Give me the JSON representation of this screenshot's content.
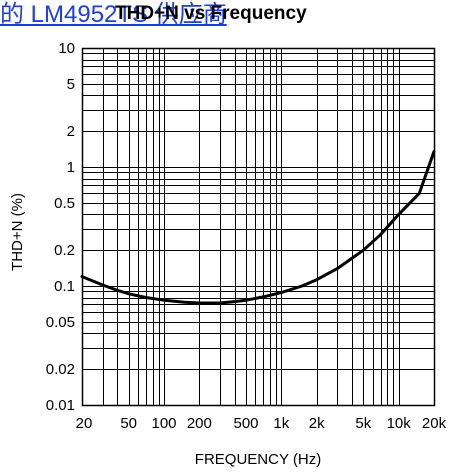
{
  "page": {
    "link_text": "的 LM4952TS 供应商"
  },
  "chart_data": {
    "type": "line",
    "title": "THD+N vs Frequency",
    "xlabel": "FREQUENCY (Hz)",
    "ylabel": "THD+N (%)",
    "x_scale": "log",
    "y_scale": "log",
    "xlim": [
      20,
      20000
    ],
    "ylim": [
      0.01,
      10
    ],
    "grid": true,
    "x_ticks": [
      {
        "value": 20,
        "label": "20"
      },
      {
        "value": 50,
        "label": "50"
      },
      {
        "value": 100,
        "label": "100"
      },
      {
        "value": 200,
        "label": "200"
      },
      {
        "value": 500,
        "label": "500"
      },
      {
        "value": 1000,
        "label": "1k"
      },
      {
        "value": 2000,
        "label": "2k"
      },
      {
        "value": 5000,
        "label": "5k"
      },
      {
        "value": 10000,
        "label": "10k"
      },
      {
        "value": 20000,
        "label": "20k"
      }
    ],
    "y_ticks": [
      {
        "value": 10,
        "label": "10"
      },
      {
        "value": 5,
        "label": "5"
      },
      {
        "value": 2,
        "label": "2"
      },
      {
        "value": 1,
        "label": "1"
      },
      {
        "value": 0.5,
        "label": "0.5"
      },
      {
        "value": 0.2,
        "label": "0.2"
      },
      {
        "value": 0.1,
        "label": "0.1"
      },
      {
        "value": 0.05,
        "label": "0.05"
      },
      {
        "value": 0.02,
        "label": "0.02"
      },
      {
        "value": 0.01,
        "label": "0.01"
      }
    ],
    "series": [
      {
        "color": "#000000",
        "x": [
          20,
          30,
          40,
          50,
          70,
          100,
          150,
          200,
          300,
          400,
          500,
          700,
          1000,
          1500,
          2000,
          3000,
          5000,
          7000,
          10000,
          12000,
          15000,
          20000
        ],
        "y": [
          0.12,
          0.102,
          0.092,
          0.086,
          0.08,
          0.076,
          0.073,
          0.072,
          0.072,
          0.074,
          0.076,
          0.081,
          0.088,
          0.1,
          0.113,
          0.14,
          0.2,
          0.27,
          0.4,
          0.48,
          0.6,
          1.35
        ]
      }
    ]
  }
}
